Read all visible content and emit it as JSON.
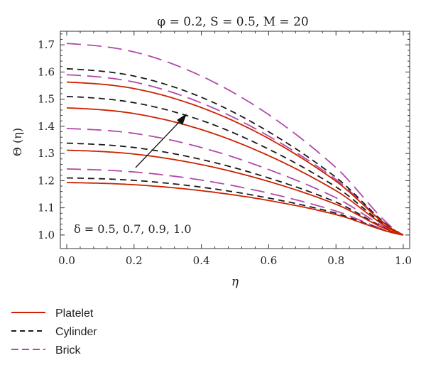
{
  "chart_data": {
    "type": "line",
    "title": "φ = 0.2, S = 0.5, M = 20",
    "xlabel": "η",
    "ylabel": "Θ (η)",
    "xlim": [
      0,
      1.0
    ],
    "ylim": [
      0.95,
      1.75
    ],
    "x_ticks": [
      "0.0",
      "0.2",
      "0.4",
      "0.6",
      "0.8",
      "1.0"
    ],
    "y_ticks": [
      "1.0",
      "1.1",
      "1.2",
      "1.3",
      "1.4",
      "1.5",
      "1.6",
      "1.7"
    ],
    "annotation": "δ = 0.5, 0.7, 0.9, 1.0",
    "legend_position": "bottom-left",
    "colors": {
      "Platelet": "#cc2200",
      "Cylinder": "#1a1a1a",
      "Brick": "#b04aa8"
    },
    "series": [
      {
        "name": "Platelet",
        "group": "δ = 0.5",
        "x": [
          0,
          0.2,
          0.4,
          0.6,
          0.8,
          1.0
        ],
        "values": [
          1.193,
          1.185,
          1.163,
          1.127,
          1.075,
          1.0
        ]
      },
      {
        "name": "Platelet",
        "group": "δ = 0.7",
        "x": [
          0,
          0.2,
          0.4,
          0.6,
          0.8,
          1.0
        ],
        "values": [
          1.312,
          1.298,
          1.259,
          1.197,
          1.113,
          1.0
        ]
      },
      {
        "name": "Platelet",
        "group": "δ = 0.9",
        "x": [
          0,
          0.2,
          0.4,
          0.6,
          0.8,
          1.0
        ],
        "values": [
          1.468,
          1.447,
          1.388,
          1.292,
          1.163,
          1.0
        ]
      },
      {
        "name": "Platelet",
        "group": "δ = 1.0",
        "x": [
          0,
          0.2,
          0.4,
          0.6,
          0.8,
          1.0
        ],
        "values": [
          1.563,
          1.539,
          1.469,
          1.355,
          1.198,
          1.0
        ]
      },
      {
        "name": "Cylinder",
        "group": "δ = 0.5",
        "x": [
          0,
          0.2,
          0.4,
          0.6,
          0.8,
          1.0
        ],
        "values": [
          1.21,
          1.201,
          1.176,
          1.136,
          1.08,
          1.0
        ]
      },
      {
        "name": "Cylinder",
        "group": "δ = 0.7",
        "x": [
          0,
          0.2,
          0.4,
          0.6,
          0.8,
          1.0
        ],
        "values": [
          1.338,
          1.322,
          1.278,
          1.21,
          1.121,
          1.0
        ]
      },
      {
        "name": "Cylinder",
        "group": "δ = 0.9",
        "x": [
          0,
          0.2,
          0.4,
          0.6,
          0.8,
          1.0
        ],
        "values": [
          1.51,
          1.487,
          1.422,
          1.316,
          1.177,
          1.0
        ]
      },
      {
        "name": "Cylinder",
        "group": "δ = 1.0",
        "x": [
          0,
          0.2,
          0.4,
          0.6,
          0.8,
          1.0
        ],
        "values": [
          1.612,
          1.585,
          1.507,
          1.38,
          1.212,
          1.0
        ]
      },
      {
        "name": "Brick",
        "group": "δ = 0.5",
        "x": [
          0,
          0.2,
          0.4,
          0.6,
          0.8,
          1.0
        ],
        "values": [
          1.243,
          1.232,
          1.202,
          1.154,
          1.088,
          1.0
        ]
      },
      {
        "name": "Brick",
        "group": "δ = 0.7",
        "x": [
          0,
          0.2,
          0.4,
          0.6,
          0.8,
          1.0
        ],
        "values": [
          1.392,
          1.374,
          1.322,
          1.241,
          1.137,
          1.0
        ]
      },
      {
        "name": "Brick",
        "group": "δ = 0.9",
        "x": [
          0,
          0.2,
          0.4,
          0.6,
          0.8,
          1.0
        ],
        "values": [
          1.59,
          1.563,
          1.486,
          1.364,
          1.204,
          1.0
        ]
      },
      {
        "name": "Brick",
        "group": "δ = 1.0",
        "x": [
          0,
          0.2,
          0.4,
          0.6,
          0.8,
          1.0
        ],
        "values": [
          1.705,
          1.674,
          1.585,
          1.443,
          1.248,
          1.0
        ]
      }
    ],
    "legend": [
      {
        "name": "Platelet",
        "style": "solid"
      },
      {
        "name": "Cylinder",
        "style": "dashed"
      },
      {
        "name": "Brick",
        "style": "long-dashed"
      }
    ]
  }
}
